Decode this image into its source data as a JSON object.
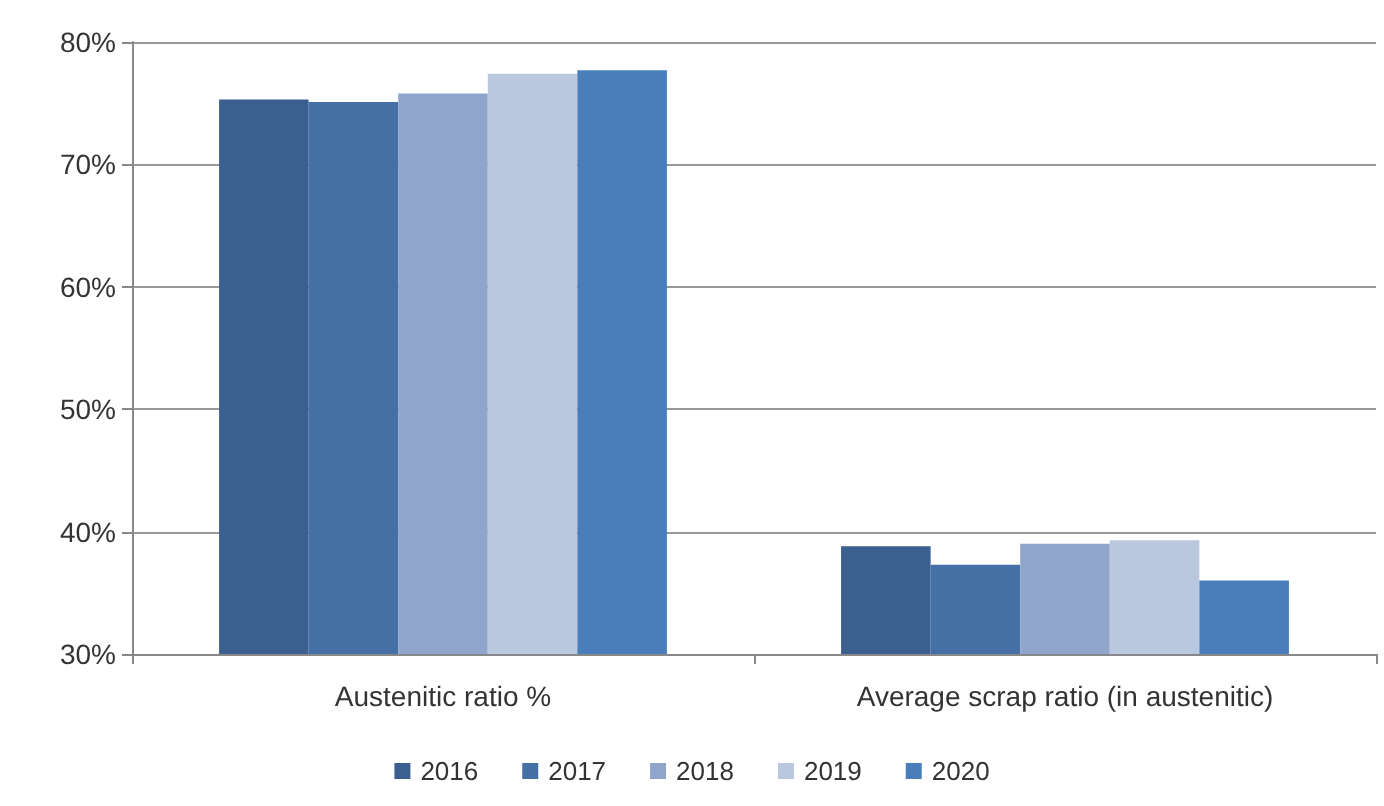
{
  "chart_data": {
    "type": "bar",
    "categories": [
      "Austenitic ratio %",
      "Average scrap ratio (in austenitic)"
    ],
    "series": [
      {
        "name": "2016",
        "color": "#3b5f8e",
        "values": [
          75.3,
          38.8
        ]
      },
      {
        "name": "2017",
        "color": "#4570a6",
        "values": [
          75.1,
          37.3
        ]
      },
      {
        "name": "2018",
        "color": "#8fa5cc",
        "values": [
          75.8,
          39.0
        ]
      },
      {
        "name": "2019",
        "color": "#b9c7df",
        "values": [
          77.4,
          39.3
        ]
      },
      {
        "name": "2020",
        "color": "#4a7ebb",
        "values": [
          77.7,
          36.0
        ]
      }
    ],
    "ylim": [
      30,
      80
    ],
    "yticks": [
      {
        "value": 30,
        "label": "30%"
      },
      {
        "value": 40,
        "label": "40%"
      },
      {
        "value": 50,
        "label": "50%"
      },
      {
        "value": 60,
        "label": "60%"
      },
      {
        "value": 70,
        "label": "70%"
      },
      {
        "value": 80,
        "label": "80%"
      }
    ],
    "grid": "y",
    "legend": "bottom"
  }
}
